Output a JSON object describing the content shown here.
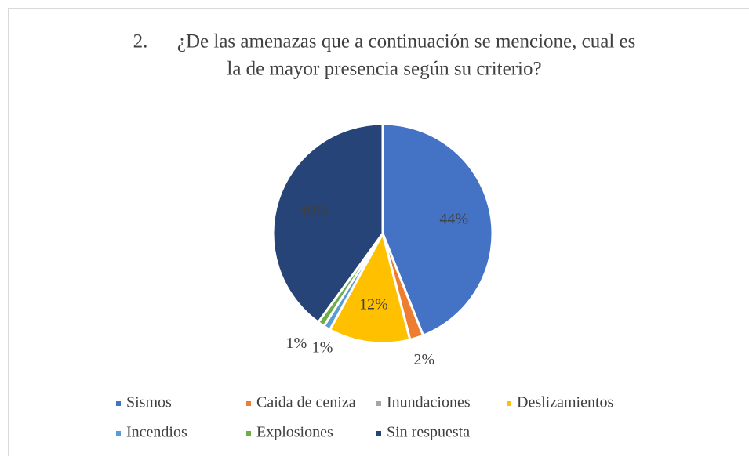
{
  "chart_data": {
    "type": "pie",
    "title": [
      "2.      ¿De las amenazas que a continuación se mencione, cual es",
      "la de mayor presencia según su criterio?"
    ],
    "categories": [
      "Sismos",
      "Caida de ceniza",
      "Inundaciones",
      "Deslizamientos",
      "Incendios",
      "Explosiones",
      "Sin respuesta"
    ],
    "values": [
      44,
      2,
      0,
      12,
      1,
      1,
      40
    ],
    "value_labels": [
      "44%",
      "2%",
      null,
      "12%",
      "1%",
      "1%",
      "40%"
    ],
    "colors": [
      "#4472c4",
      "#ed7d31",
      "#a5a5a5",
      "#ffc000",
      "#5b9bd5",
      "#70ad47",
      "#264478"
    ],
    "legend": "bottom"
  }
}
